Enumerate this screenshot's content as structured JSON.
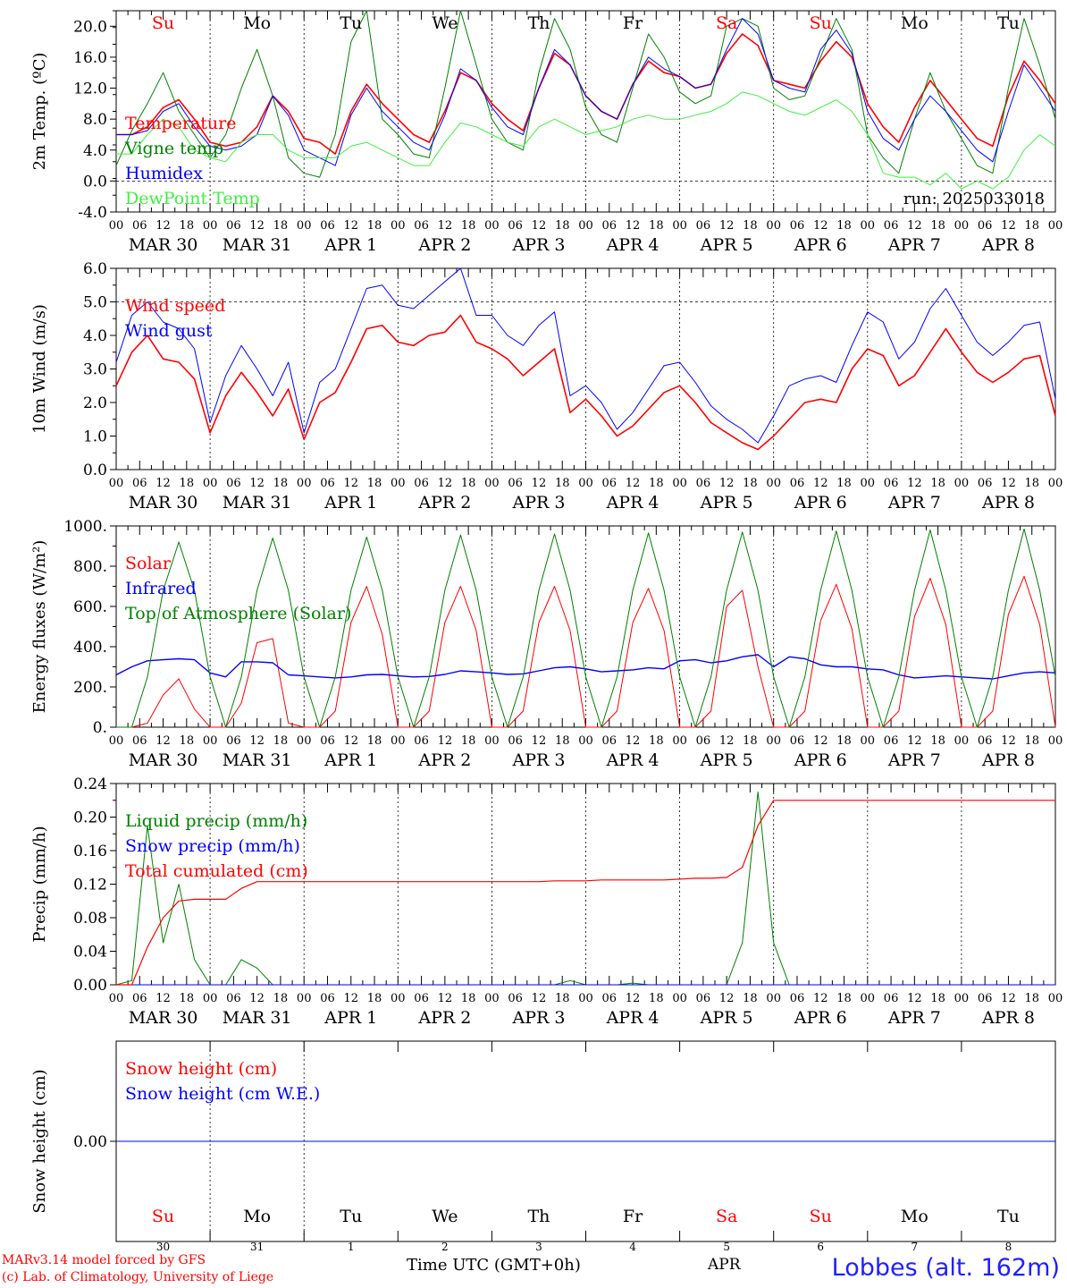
{
  "colors": {
    "red": "#ff0000",
    "green": "#008000",
    "blue": "#0000ff",
    "lightgreen": "#40ee40",
    "grey": "#555555"
  },
  "days": [
    "Su",
    "Mo",
    "Tu",
    "We",
    "Th",
    "Fr",
    "Sa",
    "Su",
    "Mo",
    "Tu"
  ],
  "weekend_days": [
    0,
    6,
    7
  ],
  "dates": [
    "MAR 30",
    "MAR 31",
    "APR  1",
    "APR  2",
    "APR  3",
    "APR  4",
    "APR  5",
    "APR  6",
    "APR  7",
    "APR  8"
  ],
  "day_numbers": [
    "30",
    "31",
    "1",
    "2",
    "3",
    "4",
    "5",
    "6",
    "7",
    "8"
  ],
  "hour_ticks": [
    "00",
    "06",
    "12",
    "18"
  ],
  "last_tick": "00",
  "run_label": "run: 2025033018",
  "footer": {
    "model_line1": "MARv3.14 model forced by GFS",
    "model_line2": "(c) Lab. of Climatology, University of Liege",
    "time_label": "Time UTC (GMT+0h)",
    "month_label": "APR",
    "station": "Lobbes (alt. 162m)"
  },
  "chart_data": [
    {
      "type": "line",
      "ylabel": "2m Temp. (ºC)",
      "ylim": [
        -4,
        22
      ],
      "yticks": [
        "-4.0",
        "0.0",
        "4.0",
        "8.0",
        "12.0",
        "16.0",
        "20.0"
      ],
      "dashed_lines": [
        0
      ],
      "x_unit": "hours since MAR 30 00 UTC, 3-hourly",
      "legend": [
        "Temperature",
        "Vigne temp",
        "Humidex",
        "DewPoint Temp"
      ],
      "series": [
        {
          "name": "Temperature",
          "color": "red",
          "width": 1.6,
          "values": [
            6.0,
            6.0,
            7.0,
            9.5,
            10.5,
            8.0,
            5.0,
            4.5,
            5.0,
            7.0,
            11.0,
            9.0,
            5.5,
            5.0,
            3.5,
            9.0,
            12.5,
            10.0,
            8.0,
            6.0,
            5.0,
            9.0,
            14.0,
            13.0,
            10.0,
            8.0,
            6.5,
            12.0,
            16.5,
            15.0,
            11.0,
            9.0,
            8.0,
            12.5,
            15.5,
            14.0,
            13.5,
            12.0,
            12.5,
            16.5,
            19.0,
            17.5,
            13.0,
            12.5,
            12.0,
            15.5,
            18.0,
            16.0,
            10.0,
            7.0,
            5.0,
            9.5,
            13.0,
            10.5,
            8.0,
            5.5,
            4.5,
            11.0,
            15.5,
            13.0,
            10.0
          ]
        },
        {
          "name": "Vigne temp",
          "color": "green",
          "width": 1.0,
          "values": [
            2.0,
            6.5,
            10.0,
            14.0,
            9.0,
            6.0,
            3.0,
            6.0,
            12.0,
            17.0,
            11.0,
            3.0,
            1.0,
            0.5,
            6.0,
            18.0,
            22.0,
            8.0,
            6.0,
            3.5,
            3.0,
            12.0,
            22.0,
            15.0,
            8.0,
            5.0,
            4.0,
            14.0,
            21.0,
            17.0,
            9.5,
            6.0,
            5.0,
            12.0,
            19.0,
            16.0,
            11.5,
            10.0,
            11.0,
            20.0,
            21.0,
            20.0,
            12.0,
            10.5,
            11.0,
            16.0,
            21.0,
            17.0,
            6.0,
            3.0,
            1.0,
            8.0,
            14.0,
            9.0,
            5.5,
            2.0,
            1.0,
            12.0,
            21.0,
            15.0,
            8.0
          ]
        },
        {
          "name": "Humidex",
          "color": "blue",
          "width": 1.0,
          "values": [
            6.0,
            6.0,
            6.5,
            9.0,
            10.0,
            7.0,
            4.5,
            4.0,
            4.5,
            6.0,
            11.0,
            8.5,
            4.0,
            3.0,
            2.0,
            8.5,
            12.0,
            9.0,
            7.0,
            5.0,
            4.0,
            8.5,
            14.5,
            13.0,
            9.5,
            7.0,
            6.0,
            12.0,
            17.0,
            15.0,
            11.0,
            9.0,
            8.0,
            12.5,
            16.0,
            14.5,
            13.5,
            12.0,
            12.5,
            17.0,
            21.0,
            19.0,
            13.0,
            12.0,
            11.5,
            17.0,
            19.5,
            16.5,
            9.0,
            5.5,
            4.0,
            8.0,
            11.0,
            9.0,
            6.5,
            4.0,
            2.5,
            9.0,
            15.0,
            12.0,
            9.0
          ]
        },
        {
          "name": "DewPoint Temp",
          "color": "lightgreen",
          "width": 1.0,
          "values": [
            3.5,
            3.5,
            6.0,
            8.0,
            7.0,
            4.0,
            3.0,
            2.5,
            5.0,
            6.0,
            6.0,
            4.0,
            3.0,
            3.0,
            3.0,
            4.5,
            5.0,
            4.0,
            3.0,
            2.0,
            2.0,
            5.0,
            7.5,
            7.0,
            6.0,
            5.0,
            4.5,
            7.0,
            8.0,
            7.0,
            6.0,
            6.5,
            7.0,
            8.0,
            8.5,
            8.0,
            8.0,
            8.5,
            9.0,
            10.0,
            11.5,
            11.0,
            10.0,
            9.0,
            8.5,
            9.5,
            10.5,
            9.0,
            6.0,
            1.0,
            0.5,
            0.5,
            -0.5,
            1.0,
            -1.0,
            0.0,
            -1.0,
            0.5,
            4.0,
            6.0,
            4.5
          ]
        }
      ]
    },
    {
      "type": "line",
      "ylabel": "10m Wind (m/s)",
      "ylim": [
        0,
        6
      ],
      "yticks": [
        "0.0",
        "1.0",
        "2.0",
        "3.0",
        "4.0",
        "5.0",
        "6.0"
      ],
      "dashed_lines": [
        5
      ],
      "x_unit": "hours since MAR 30 00 UTC, 3-hourly",
      "legend": [
        "Wind speed",
        "Wind gust"
      ],
      "series": [
        {
          "name": "Wind speed",
          "color": "red",
          "width": 1.6,
          "values": [
            2.5,
            3.5,
            4.0,
            3.3,
            3.2,
            2.7,
            1.1,
            2.2,
            2.9,
            2.3,
            1.6,
            2.4,
            0.9,
            2.0,
            2.3,
            3.2,
            4.2,
            4.3,
            3.8,
            3.7,
            4.0,
            4.1,
            4.6,
            3.8,
            3.6,
            3.3,
            2.8,
            3.2,
            3.6,
            1.7,
            2.1,
            1.6,
            1.0,
            1.3,
            1.8,
            2.3,
            2.5,
            2.0,
            1.4,
            1.1,
            0.8,
            0.6,
            1.0,
            1.5,
            2.0,
            2.1,
            2.0,
            3.0,
            3.6,
            3.4,
            2.5,
            2.8,
            3.5,
            4.2,
            3.5,
            2.9,
            2.6,
            2.9,
            3.3,
            3.4,
            1.6
          ]
        },
        {
          "name": "Wind gust",
          "color": "blue",
          "width": 1.0,
          "values": [
            3.2,
            4.6,
            5.0,
            4.4,
            4.2,
            3.6,
            1.4,
            2.8,
            3.7,
            3.0,
            2.2,
            3.2,
            1.1,
            2.6,
            3.0,
            4.2,
            5.4,
            5.5,
            4.9,
            4.8,
            5.2,
            5.6,
            6.0,
            4.6,
            4.6,
            4.0,
            3.7,
            4.3,
            4.7,
            2.2,
            2.5,
            2.0,
            1.2,
            1.7,
            2.4,
            3.1,
            3.2,
            2.6,
            1.9,
            1.5,
            1.2,
            0.8,
            1.6,
            2.5,
            2.7,
            2.8,
            2.6,
            3.7,
            4.7,
            4.4,
            3.3,
            3.8,
            4.8,
            5.4,
            4.6,
            3.8,
            3.4,
            3.8,
            4.3,
            4.4,
            2.1
          ]
        }
      ]
    },
    {
      "type": "line",
      "ylabel": "Energy fluxes (W/m²)",
      "ylim": [
        0,
        1000
      ],
      "yticks": [
        "0.",
        "200.",
        "400.",
        "600.",
        "800.",
        "1000."
      ],
      "dashed_lines": [],
      "x_unit": "hours since MAR 30 00 UTC, 3-hourly",
      "legend": [
        "Solar",
        "Infrared",
        "Top of Atmosphere (Solar)"
      ],
      "series": [
        {
          "name": "Solar",
          "color": "red",
          "width": 1.0,
          "values": [
            0,
            0,
            20,
            160,
            240,
            90,
            0,
            0,
            120,
            420,
            440,
            20,
            0,
            0,
            80,
            520,
            700,
            460,
            0,
            0,
            80,
            520,
            700,
            480,
            0,
            0,
            80,
            520,
            700,
            480,
            0,
            0,
            80,
            520,
            690,
            480,
            0,
            0,
            80,
            600,
            680,
            300,
            0,
            0,
            80,
            530,
            710,
            490,
            0,
            0,
            80,
            550,
            740,
            510,
            0,
            0,
            80,
            560,
            750,
            510,
            0
          ]
        },
        {
          "name": "Infrared",
          "color": "blue",
          "width": 1.4,
          "values": [
            260,
            300,
            330,
            335,
            340,
            335,
            270,
            250,
            325,
            325,
            320,
            260,
            255,
            250,
            245,
            250,
            260,
            262,
            255,
            250,
            252,
            262,
            280,
            275,
            270,
            262,
            265,
            280,
            295,
            300,
            290,
            275,
            280,
            285,
            295,
            290,
            330,
            335,
            320,
            330,
            350,
            360,
            300,
            350,
            340,
            310,
            300,
            300,
            290,
            285,
            260,
            245,
            250,
            255,
            250,
            245,
            240,
            255,
            270,
            275,
            270
          ]
        },
        {
          "name": "Top of Atmosphere (Solar)",
          "color": "green",
          "width": 1.0,
          "values": [
            0,
            0,
            250,
            680,
            920,
            680,
            250,
            0,
            250,
            680,
            940,
            680,
            250,
            0,
            250,
            680,
            945,
            680,
            250,
            0,
            250,
            680,
            955,
            680,
            250,
            0,
            250,
            680,
            960,
            680,
            250,
            0,
            250,
            680,
            965,
            680,
            250,
            0,
            250,
            680,
            970,
            680,
            250,
            0,
            250,
            680,
            975,
            680,
            250,
            0,
            250,
            680,
            980,
            680,
            250,
            0,
            250,
            680,
            985,
            680,
            250
          ]
        }
      ]
    },
    {
      "type": "line",
      "ylabel": "Precip (mm/h)",
      "ylim": [
        0,
        0.24
      ],
      "yticks": [
        "0.00",
        "0.04",
        "0.08",
        "0.12",
        "0.16",
        "0.20",
        "0.24"
      ],
      "dashed_lines": [],
      "x_unit": "hours since MAR 30 00 UTC, 3-hourly",
      "legend": [
        "Liquid precip (mm/h)",
        "Snow precip (mm/h)",
        "Total cumulated (cm)"
      ],
      "series": [
        {
          "name": "Liquid precip (mm/h)",
          "color": "green",
          "width": 1.0,
          "values": [
            0,
            0.005,
            0.19,
            0.05,
            0.12,
            0.03,
            0,
            0,
            0.03,
            0.02,
            0,
            0,
            0,
            0,
            0,
            0,
            0,
            0,
            0,
            0,
            0,
            0,
            0,
            0,
            0,
            0,
            0,
            0,
            0,
            0.005,
            0,
            0,
            0,
            0.002,
            0,
            0,
            0,
            0,
            0,
            0,
            0.05,
            0.23,
            0.05,
            0,
            0,
            0,
            0,
            0,
            0,
            0,
            0,
            0,
            0,
            0,
            0,
            0,
            0,
            0,
            0,
            0,
            0
          ]
        },
        {
          "name": "Snow precip (mm/h)",
          "color": "blue",
          "width": 1.0,
          "values": [
            0,
            0,
            0,
            0,
            0,
            0,
            0,
            0,
            0,
            0,
            0,
            0,
            0,
            0,
            0,
            0,
            0,
            0,
            0,
            0,
            0,
            0,
            0,
            0,
            0,
            0,
            0,
            0,
            0,
            0,
            0,
            0,
            0,
            0,
            0,
            0,
            0,
            0,
            0,
            0,
            0,
            0,
            0,
            0,
            0,
            0,
            0,
            0,
            0,
            0,
            0,
            0,
            0,
            0,
            0,
            0,
            0,
            0,
            0,
            0,
            0
          ]
        },
        {
          "name": "Total cumulated (cm)",
          "color": "red",
          "width": 1.2,
          "values": [
            0,
            0,
            0.045,
            0.08,
            0.1,
            0.102,
            0.102,
            0.102,
            0.115,
            0.123,
            0.123,
            0.123,
            0.123,
            0.123,
            0.123,
            0.123,
            0.123,
            0.123,
            0.123,
            0.123,
            0.123,
            0.123,
            0.123,
            0.123,
            0.123,
            0.123,
            0.123,
            0.123,
            0.124,
            0.124,
            0.124,
            0.125,
            0.125,
            0.125,
            0.125,
            0.125,
            0.126,
            0.127,
            0.127,
            0.128,
            0.14,
            0.19,
            0.22,
            0.22,
            0.22,
            0.22,
            0.22,
            0.22,
            0.22,
            0.22,
            0.22,
            0.22,
            0.22,
            0.22,
            0.22,
            0.22,
            0.22,
            0.22,
            0.22,
            0.22,
            0.22
          ]
        }
      ]
    },
    {
      "type": "line",
      "ylabel": "Snow height (cm)",
      "ylim": [
        -1,
        1
      ],
      "yticks": [
        "0.00"
      ],
      "dashed_lines": [],
      "x_unit": "hours since MAR 30 00 UTC, 3-hourly",
      "legend": [
        "Snow height (cm)",
        "Snow height (cm W.E.)"
      ],
      "series": [
        {
          "name": "Snow height (cm)",
          "color": "red",
          "width": 1.0,
          "values": [
            0,
            0,
            0,
            0,
            0,
            0,
            0,
            0,
            0,
            0,
            0,
            0,
            0,
            0,
            0,
            0,
            0,
            0,
            0,
            0,
            0,
            0,
            0,
            0,
            0,
            0,
            0,
            0,
            0,
            0,
            0,
            0,
            0,
            0,
            0,
            0,
            0,
            0,
            0,
            0,
            0,
            0,
            0,
            0,
            0,
            0,
            0,
            0,
            0,
            0,
            0,
            0,
            0,
            0,
            0,
            0,
            0,
            0,
            0,
            0,
            0
          ]
        },
        {
          "name": "Snow height (cm W.E.)",
          "color": "blue",
          "width": 1.0,
          "values": [
            0,
            0,
            0,
            0,
            0,
            0,
            0,
            0,
            0,
            0,
            0,
            0,
            0,
            0,
            0,
            0,
            0,
            0,
            0,
            0,
            0,
            0,
            0,
            0,
            0,
            0,
            0,
            0,
            0,
            0,
            0,
            0,
            0,
            0,
            0,
            0,
            0,
            0,
            0,
            0,
            0,
            0,
            0,
            0,
            0,
            0,
            0,
            0,
            0,
            0,
            0,
            0,
            0,
            0,
            0,
            0,
            0,
            0,
            0,
            0,
            0
          ]
        }
      ]
    }
  ]
}
